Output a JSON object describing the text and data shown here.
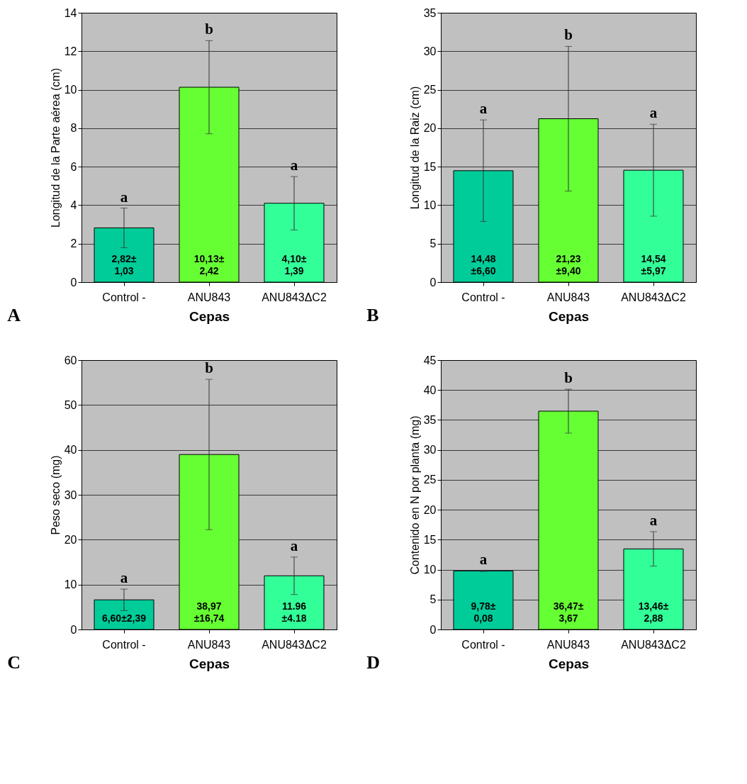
{
  "chart_data": [
    {
      "type": "bar",
      "categories": [
        "Control -",
        "ANU843",
        "ANU843ΔC2"
      ],
      "values": [
        2.82,
        10.13,
        4.1
      ],
      "errors": [
        1.03,
        2.42,
        1.39
      ],
      "colors": [
        "#00cc99",
        "#66ff33",
        "#33ff99"
      ],
      "value_labels": [
        "2,82±\n1,03",
        "10,13±\n2,42",
        "4,10±\n1,39"
      ],
      "ylabel": "Longitud de la Parte aérea (cm)",
      "xlabel": "Cepas",
      "ylim": [
        0,
        14
      ],
      "yticks": [
        0,
        2,
        4,
        6,
        8,
        10,
        12,
        14
      ],
      "grid": "y",
      "annotations": [
        "a",
        "b",
        "a",
        "A"
      ]
    },
    {
      "type": "bar",
      "categories": [
        "Control -",
        "ANU843",
        "ANU843ΔC2"
      ],
      "values": [
        14.48,
        21.23,
        14.54
      ],
      "errors": [
        6.6,
        9.4,
        5.97
      ],
      "colors": [
        "#00cc99",
        "#66ff33",
        "#33ff99"
      ],
      "value_labels": [
        "14,48\n±6,60",
        "21,23\n±9,40",
        "14,54\n±5,97"
      ],
      "ylabel": "Longitud de la Raiz (cm)",
      "xlabel": "Cepas",
      "ylim": [
        0,
        35
      ],
      "yticks": [
        0,
        5,
        10,
        15,
        20,
        25,
        30,
        35
      ],
      "grid": "y",
      "annotations": [
        "a",
        "b",
        "a",
        "B"
      ]
    },
    {
      "type": "bar",
      "categories": [
        "Control -",
        "ANU843",
        "ANU843ΔC2"
      ],
      "values": [
        6.6,
        38.97,
        11.96
      ],
      "errors": [
        2.39,
        16.74,
        4.18
      ],
      "colors": [
        "#00cc99",
        "#66ff33",
        "#33ff99"
      ],
      "value_labels": [
        "6,60±2,39",
        "38,97\n±16,74",
        "11.96\n±4.18"
      ],
      "ylabel": "Peso seco (mg)",
      "xlabel": "Cepas",
      "ylim": [
        0,
        60
      ],
      "yticks": [
        0,
        10,
        20,
        30,
        40,
        50,
        60
      ],
      "grid": "y",
      "annotations": [
        "a",
        "b",
        "a",
        "C"
      ]
    },
    {
      "type": "bar",
      "categories": [
        "Control -",
        "ANU843",
        "ANU843ΔC2"
      ],
      "values": [
        9.78,
        36.47,
        13.46
      ],
      "errors": [
        0.08,
        3.67,
        2.88
      ],
      "colors": [
        "#00cc99",
        "#66ff33",
        "#33ff99"
      ],
      "value_labels": [
        "9,78±\n0,08",
        "36,47±\n3,67",
        "13,46±\n2,88"
      ],
      "ylabel": "Contenido en N por planta (mg)",
      "xlabel": "Cepas",
      "ylim": [
        0,
        45
      ],
      "yticks": [
        0,
        5,
        10,
        15,
        20,
        25,
        30,
        35,
        40,
        45
      ],
      "grid": "y",
      "annotations": [
        "a",
        "b",
        "a",
        "D"
      ]
    }
  ]
}
